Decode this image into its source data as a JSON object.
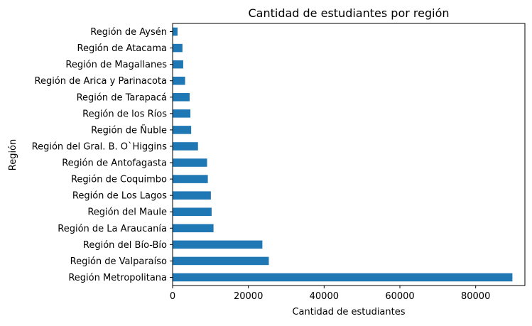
{
  "chart_data": {
    "type": "bar",
    "orientation": "horizontal",
    "title": "Cantidad de estudiantes por región",
    "xlabel": "Cantidad de estudiantes",
    "ylabel": "Región",
    "xlim": [
      0,
      93000
    ],
    "xticks": [
      0,
      20000,
      40000,
      60000,
      80000
    ],
    "xtick_labels": [
      "0",
      "20000",
      "40000",
      "60000",
      "80000"
    ],
    "grid": false,
    "legend": "none",
    "bar_color": "#1f77b4",
    "categories": [
      "Región Metropolitana",
      "Región de Valparaíso",
      "Región del Bío-Bío",
      "Región de La Araucanía",
      "Región del Maule",
      "Región de Los Lagos",
      "Región de Coquimbo",
      "Región de Antofagasta",
      "Región del Gral. B. O`Higgins",
      "Región de Ñuble",
      "Región de los Ríos",
      "Región de Tarapacá",
      "Región de Arica y Parinacota",
      "Región de Magallanes",
      "Región de Atacama",
      "Región de Aysén"
    ],
    "values": [
      89700,
      25400,
      23700,
      10800,
      10300,
      10100,
      9300,
      9100,
      6700,
      4900,
      4700,
      4500,
      3300,
      2800,
      2600,
      1300
    ]
  }
}
